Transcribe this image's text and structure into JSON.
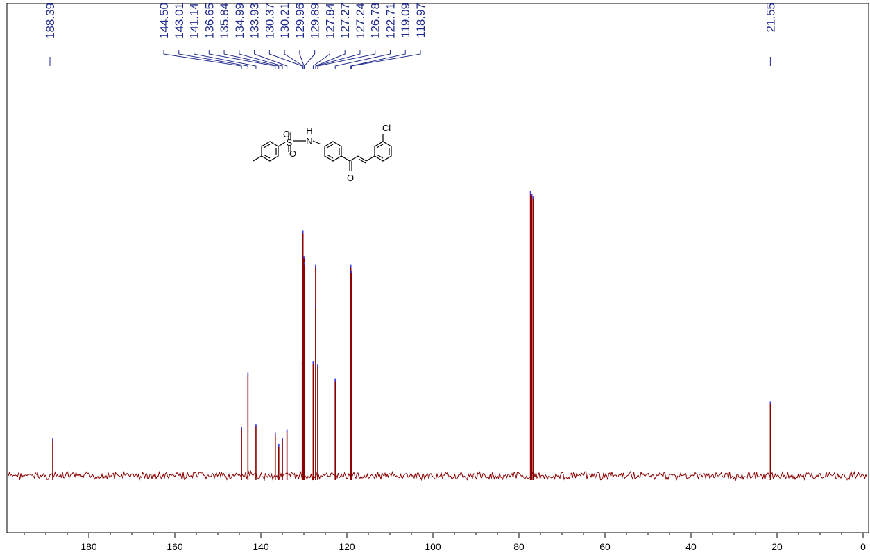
{
  "chart_data": {
    "type": "line",
    "title": "",
    "xlabel": "",
    "ylabel": "",
    "x_axis": {
      "xlim": [
        0,
        197
      ],
      "reversed": true,
      "major_ticks": [
        180,
        160,
        140,
        120,
        100,
        80,
        60,
        40,
        20,
        0
      ],
      "tick_labels": [
        "180",
        "160",
        "140",
        "120",
        "100",
        "80",
        "60",
        "40",
        "20",
        "0"
      ],
      "minor_step": 5
    },
    "y_axis": {
      "shown": false,
      "ylim": [
        0,
        1.0
      ]
    },
    "grid": false,
    "colors": {
      "spectrum": "#8b0000",
      "labels": "#1f2a8c",
      "peak_markers": "#3b3bff",
      "axis": "#000000"
    },
    "peak_labels": [
      {
        "group": "left",
        "labels": [
          "188.39"
        ]
      },
      {
        "group": "middle",
        "labels": [
          "144.50",
          "143.01",
          "141.14",
          "136.65",
          "135.84",
          "134.99",
          "133.93",
          "130.37",
          "130.21",
          "129.96",
          "129.89",
          "127.84",
          "127.27",
          "127.24",
          "126.78",
          "122.71",
          "119.09",
          "118.97"
        ]
      },
      {
        "group": "right",
        "labels": [
          "21.55"
        ]
      }
    ],
    "series": [
      {
        "peaks": [
          {
            "ppm": 188.39,
            "height": 0.13
          },
          {
            "ppm": 144.5,
            "height": 0.17
          },
          {
            "ppm": 143.01,
            "height": 0.36
          },
          {
            "ppm": 141.14,
            "height": 0.18
          },
          {
            "ppm": 136.65,
            "height": 0.15
          },
          {
            "ppm": 135.84,
            "height": 0.11
          },
          {
            "ppm": 134.99,
            "height": 0.13
          },
          {
            "ppm": 133.93,
            "height": 0.16
          },
          {
            "ppm": 130.37,
            "height": 0.4
          },
          {
            "ppm": 130.21,
            "height": 0.86
          },
          {
            "ppm": 129.96,
            "height": 0.77
          },
          {
            "ppm": 129.89,
            "height": 0.75
          },
          {
            "ppm": 127.84,
            "height": 0.4
          },
          {
            "ppm": 127.27,
            "height": 0.74
          },
          {
            "ppm": 127.24,
            "height": 0.6
          },
          {
            "ppm": 126.78,
            "height": 0.39
          },
          {
            "ppm": 122.71,
            "height": 0.34
          },
          {
            "ppm": 119.09,
            "height": 0.74
          },
          {
            "ppm": 118.97,
            "height": 0.72
          },
          {
            "ppm": 77.32,
            "height": 1.0
          },
          {
            "ppm": 77.0,
            "height": 0.99
          },
          {
            "ppm": 76.68,
            "height": 0.98
          },
          {
            "ppm": 21.55,
            "height": 0.26
          }
        ]
      }
    ],
    "structure": {
      "atom_labels": [
        "O",
        "S",
        "O",
        "H",
        "N",
        "O",
        "Cl"
      ]
    }
  }
}
